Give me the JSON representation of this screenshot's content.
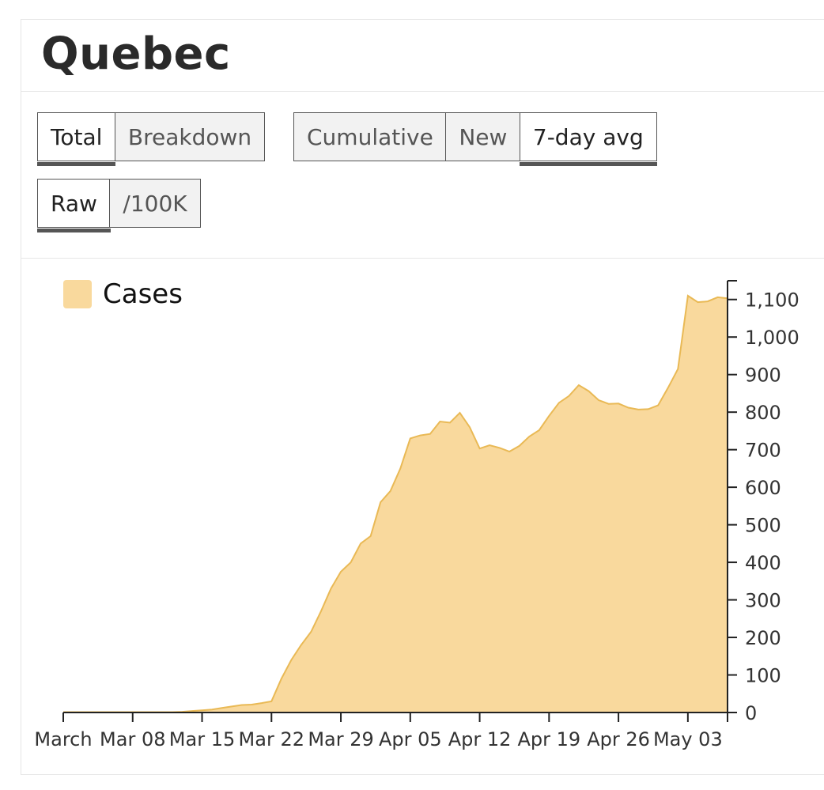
{
  "title": "Quebec",
  "controls": {
    "group1": [
      {
        "label": "Total",
        "active": true
      },
      {
        "label": "Breakdown",
        "active": false
      }
    ],
    "group2": [
      {
        "label": "Cumulative",
        "active": false
      },
      {
        "label": "New",
        "active": false
      },
      {
        "label": "7-day avg",
        "active": true
      }
    ],
    "group3": [
      {
        "label": "Raw",
        "active": true
      },
      {
        "label": "/100K",
        "active": false
      }
    ]
  },
  "colors": {
    "area_fill": "#f9d99d",
    "area_stroke": "#e9b955",
    "axis": "#222222"
  },
  "chart_data": {
    "type": "area",
    "legend": [
      {
        "name": "Cases",
        "color": "#f9d99d"
      }
    ],
    "legend_position": "top-left",
    "y_axis_position": "right",
    "grid": false,
    "ylim": [
      0,
      1150
    ],
    "xlim": [
      "2020-03-01",
      "2020-05-07"
    ],
    "yticks": [
      0,
      100,
      200,
      300,
      400,
      500,
      600,
      700,
      800,
      900,
      1000,
      1100
    ],
    "ytick_labels": [
      "0",
      "100",
      "200",
      "300",
      "400",
      "500",
      "600",
      "700",
      "800",
      "900",
      "1,000",
      "1,100"
    ],
    "xticks": [
      {
        "date": "2020-03-01",
        "label": "March"
      },
      {
        "date": "2020-03-08",
        "label": "Mar 08"
      },
      {
        "date": "2020-03-15",
        "label": "Mar 15"
      },
      {
        "date": "2020-03-22",
        "label": "Mar 22"
      },
      {
        "date": "2020-03-29",
        "label": "Mar 29"
      },
      {
        "date": "2020-04-05",
        "label": "Apr 05"
      },
      {
        "date": "2020-04-12",
        "label": "Apr 12"
      },
      {
        "date": "2020-04-19",
        "label": "Apr 19"
      },
      {
        "date": "2020-04-26",
        "label": "Apr 26"
      },
      {
        "date": "2020-05-03",
        "label": "May 03"
      }
    ],
    "series": [
      {
        "name": "Cases",
        "x": [
          "2020-03-01",
          "2020-03-02",
          "2020-03-03",
          "2020-03-04",
          "2020-03-05",
          "2020-03-06",
          "2020-03-07",
          "2020-03-08",
          "2020-03-09",
          "2020-03-10",
          "2020-03-11",
          "2020-03-12",
          "2020-03-13",
          "2020-03-14",
          "2020-03-15",
          "2020-03-16",
          "2020-03-17",
          "2020-03-18",
          "2020-03-19",
          "2020-03-20",
          "2020-03-21",
          "2020-03-22",
          "2020-03-23",
          "2020-03-24",
          "2020-03-25",
          "2020-03-26",
          "2020-03-27",
          "2020-03-28",
          "2020-03-29",
          "2020-03-30",
          "2020-03-31",
          "2020-04-01",
          "2020-04-02",
          "2020-04-03",
          "2020-04-04",
          "2020-04-05",
          "2020-04-06",
          "2020-04-07",
          "2020-04-08",
          "2020-04-09",
          "2020-04-10",
          "2020-04-11",
          "2020-04-12",
          "2020-04-13",
          "2020-04-14",
          "2020-04-15",
          "2020-04-16",
          "2020-04-17",
          "2020-04-18",
          "2020-04-19",
          "2020-04-20",
          "2020-04-21",
          "2020-04-22",
          "2020-04-23",
          "2020-04-24",
          "2020-04-25",
          "2020-04-26",
          "2020-04-27",
          "2020-04-28",
          "2020-04-29",
          "2020-04-30",
          "2020-05-01",
          "2020-05-02",
          "2020-05-03",
          "2020-05-04",
          "2020-05-05",
          "2020-05-06",
          "2020-05-07"
        ],
        "values": [
          1,
          1,
          1,
          1,
          1,
          1,
          1,
          1,
          1,
          1,
          1,
          1,
          2,
          4,
          6,
          8,
          12,
          16,
          20,
          21,
          25,
          30,
          90,
          140,
          180,
          215,
          270,
          330,
          375,
          400,
          450,
          470,
          560,
          590,
          650,
          730,
          738,
          742,
          775,
          772,
          798,
          760,
          703,
          712,
          705,
          695,
          710,
          735,
          752,
          790,
          825,
          843,
          872,
          856,
          832,
          822,
          823,
          812,
          807,
          808,
          818,
          865,
          915,
          1110,
          1093,
          1095,
          1106,
          1103
        ]
      }
    ]
  }
}
